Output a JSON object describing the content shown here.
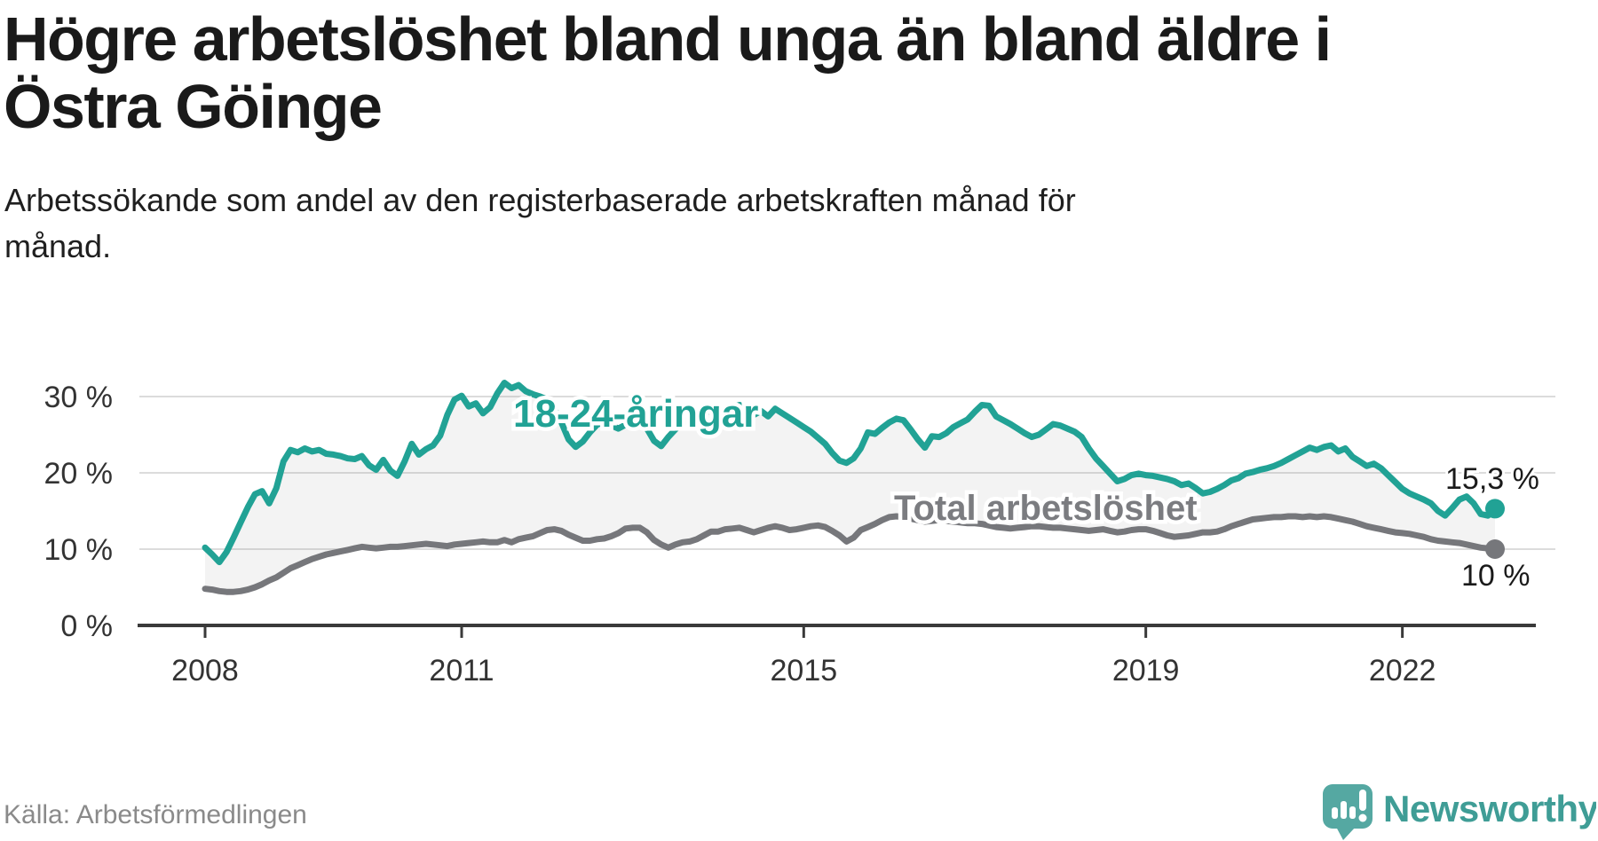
{
  "header": {
    "title_lines": [
      "Högre arbetslöshet bland unga än bland äldre i",
      "Östra Göinge"
    ],
    "subtitle_lines": [
      "Arbetssökande som andel av den registerbaserade arbetskraften månad för",
      "månad."
    ]
  },
  "footer": {
    "source": "Källa: Arbetsförmedlingen",
    "brand": "Newsworthy"
  },
  "colors": {
    "young_line": "#21a295",
    "total_line": "#76777b",
    "band_fill": "#f3f3f3",
    "grid": "#dcdcdc",
    "axis": "#3a3a3a",
    "annotation_text": "#1a1a1a",
    "source_gray": "#8a8a8a",
    "brand_teal": "#3f9d96"
  },
  "chart_data": {
    "type": "line",
    "title": "Högre arbetslöshet bland unga än bland äldre i Östra Göinge",
    "subtitle": "Arbetssökande som andel av den registerbaserade arbetskraften månad för månad.",
    "frequency": "monthly",
    "x_start": "2008-01",
    "x_end": "2023-02",
    "x_ticks": [
      "2008",
      "2011",
      "2015",
      "2019",
      "2022"
    ],
    "x_tick_years": [
      2008,
      2011,
      2015,
      2019,
      2022
    ],
    "y_ticks": [
      "30 %",
      "20 %",
      "10 %",
      "0 %"
    ],
    "y_tick_values": [
      30,
      20,
      10,
      0
    ],
    "ylim": [
      0,
      33
    ],
    "grid": "horizontal",
    "legend_position": "inline-labels",
    "series": [
      {
        "name": "18-24-åringar",
        "color": "#21a295",
        "end_label": "15,3 %",
        "end_value": 15.3,
        "values": [
          10.2,
          9.3,
          8.3,
          9.6,
          11.5,
          13.5,
          15.5,
          17.2,
          17.6,
          16.0,
          18.0,
          21.5,
          23.0,
          22.7,
          23.2,
          22.8,
          23.0,
          22.5,
          22.4,
          22.2,
          21.9,
          21.8,
          22.2,
          21.0,
          20.4,
          21.7,
          20.3,
          19.6,
          21.5,
          23.8,
          22.4,
          23.1,
          23.6,
          24.9,
          27.6,
          29.6,
          30.1,
          28.7,
          29.1,
          27.8,
          28.6,
          30.4,
          31.8,
          31.1,
          31.5,
          30.7,
          30.3,
          30.0,
          29.6,
          28.4,
          26.6,
          24.4,
          23.4,
          24.1,
          25.3,
          26.3,
          26.7,
          26.2,
          25.8,
          26.3,
          26.9,
          27.1,
          25.8,
          24.2,
          23.5,
          24.7,
          25.7,
          26.5,
          27.1,
          27.6,
          27.9,
          28.1,
          28.0,
          28.3,
          28.6,
          28.9,
          28.3,
          27.6,
          28.1,
          27.4,
          28.4,
          27.8,
          27.2,
          26.6,
          26.0,
          25.4,
          24.6,
          23.8,
          22.6,
          21.6,
          21.3,
          21.9,
          23.2,
          25.3,
          25.1,
          25.9,
          26.6,
          27.1,
          26.9,
          25.7,
          24.4,
          23.3,
          24.8,
          24.7,
          25.2,
          26.0,
          26.5,
          27.0,
          28.0,
          28.9,
          28.8,
          27.4,
          26.9,
          26.4,
          25.8,
          25.2,
          24.7,
          25.0,
          25.7,
          26.4,
          26.2,
          25.8,
          25.4,
          24.7,
          23.2,
          21.9,
          20.9,
          19.9,
          18.9,
          19.2,
          19.7,
          19.9,
          19.7,
          19.6,
          19.4,
          19.2,
          18.9,
          18.4,
          18.6,
          18.0,
          17.3,
          17.5,
          17.9,
          18.4,
          19.0,
          19.3,
          19.9,
          20.1,
          20.4,
          20.6,
          20.9,
          21.3,
          21.8,
          22.3,
          22.8,
          23.3,
          23.0,
          23.4,
          23.6,
          22.8,
          23.2,
          22.1,
          21.5,
          20.9,
          21.2,
          20.6,
          19.7,
          18.8,
          17.9,
          17.3,
          16.9,
          16.5,
          16.0,
          15.0,
          14.4,
          15.4,
          16.5,
          16.9,
          16.0,
          14.6,
          14.4,
          15.3
        ]
      },
      {
        "name": "Total arbetslöshet",
        "color": "#76777b",
        "end_label": "10 %",
        "end_value": 10.0,
        "values": [
          4.8,
          4.7,
          4.5,
          4.4,
          4.4,
          4.5,
          4.7,
          5.0,
          5.4,
          5.9,
          6.3,
          6.9,
          7.5,
          7.9,
          8.3,
          8.7,
          9.0,
          9.3,
          9.5,
          9.7,
          9.9,
          10.1,
          10.3,
          10.2,
          10.1,
          10.2,
          10.3,
          10.3,
          10.4,
          10.5,
          10.6,
          10.7,
          10.6,
          10.5,
          10.4,
          10.6,
          10.7,
          10.8,
          10.9,
          11.0,
          10.9,
          10.9,
          11.2,
          10.9,
          11.3,
          11.5,
          11.7,
          12.1,
          12.5,
          12.6,
          12.4,
          11.9,
          11.5,
          11.1,
          11.1,
          11.3,
          11.4,
          11.7,
          12.1,
          12.7,
          12.8,
          12.8,
          12.2,
          11.2,
          10.6,
          10.2,
          10.6,
          10.9,
          11.0,
          11.3,
          11.8,
          12.3,
          12.3,
          12.6,
          12.7,
          12.8,
          12.5,
          12.2,
          12.5,
          12.8,
          13.0,
          12.8,
          12.5,
          12.6,
          12.8,
          13.0,
          13.1,
          12.9,
          12.4,
          11.8,
          11.0,
          11.5,
          12.5,
          12.9,
          13.3,
          13.8,
          14.2,
          14.3,
          14.2,
          14.0,
          13.8,
          13.6,
          13.7,
          13.8,
          13.7,
          13.6,
          13.5,
          13.4,
          13.4,
          13.3,
          13.1,
          12.9,
          12.8,
          12.7,
          12.8,
          12.9,
          13.0,
          13.0,
          12.9,
          12.8,
          12.8,
          12.7,
          12.6,
          12.5,
          12.4,
          12.5,
          12.6,
          12.4,
          12.2,
          12.3,
          12.5,
          12.6,
          12.6,
          12.4,
          12.1,
          11.8,
          11.6,
          11.7,
          11.8,
          12.0,
          12.2,
          12.2,
          12.3,
          12.6,
          13.0,
          13.3,
          13.6,
          13.9,
          14.0,
          14.1,
          14.2,
          14.2,
          14.3,
          14.3,
          14.2,
          14.3,
          14.2,
          14.3,
          14.2,
          14.0,
          13.8,
          13.6,
          13.3,
          13.0,
          12.8,
          12.6,
          12.4,
          12.2,
          12.1,
          12.0,
          11.8,
          11.6,
          11.3,
          11.1,
          11.0,
          10.9,
          10.8,
          10.6,
          10.4,
          10.2,
          10.1,
          10.0
        ]
      }
    ]
  }
}
